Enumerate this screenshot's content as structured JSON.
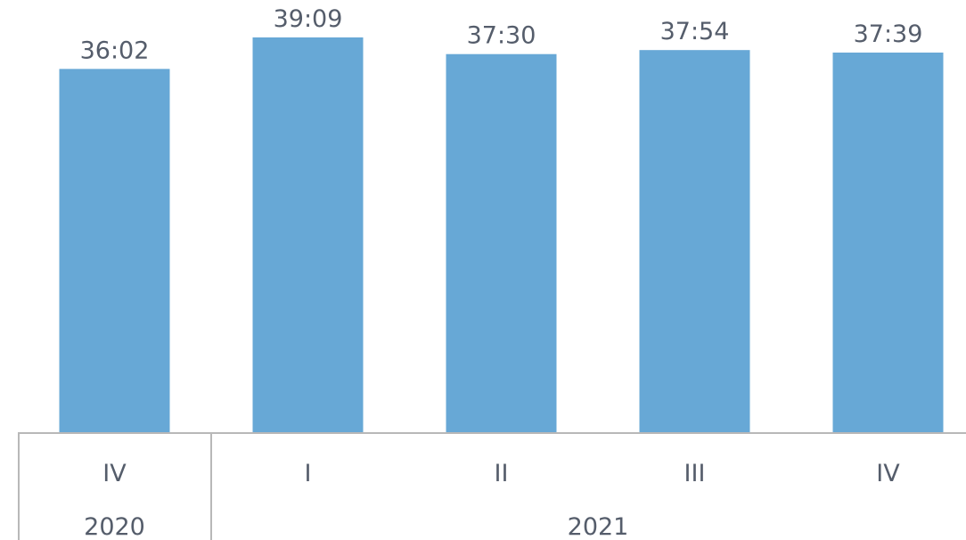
{
  "chart_data": {
    "type": "bar",
    "categories": [
      "IV",
      "I",
      "II",
      "III",
      "IV"
    ],
    "groups": [
      {
        "label": "2020",
        "count": 1
      },
      {
        "label": "2021",
        "count": 4
      }
    ],
    "values_text": [
      "36:02",
      "39:09",
      "37:30",
      "37:54",
      "37:39"
    ],
    "values_minutes": [
      36.033,
      39.15,
      37.5,
      37.9,
      37.65
    ],
    "xlabel": "",
    "ylabel": "",
    "grid": false,
    "legend": "none",
    "colors": {
      "bar": "#67a8d6",
      "text": "#555d6b",
      "axis": "#b8b8b8"
    }
  }
}
